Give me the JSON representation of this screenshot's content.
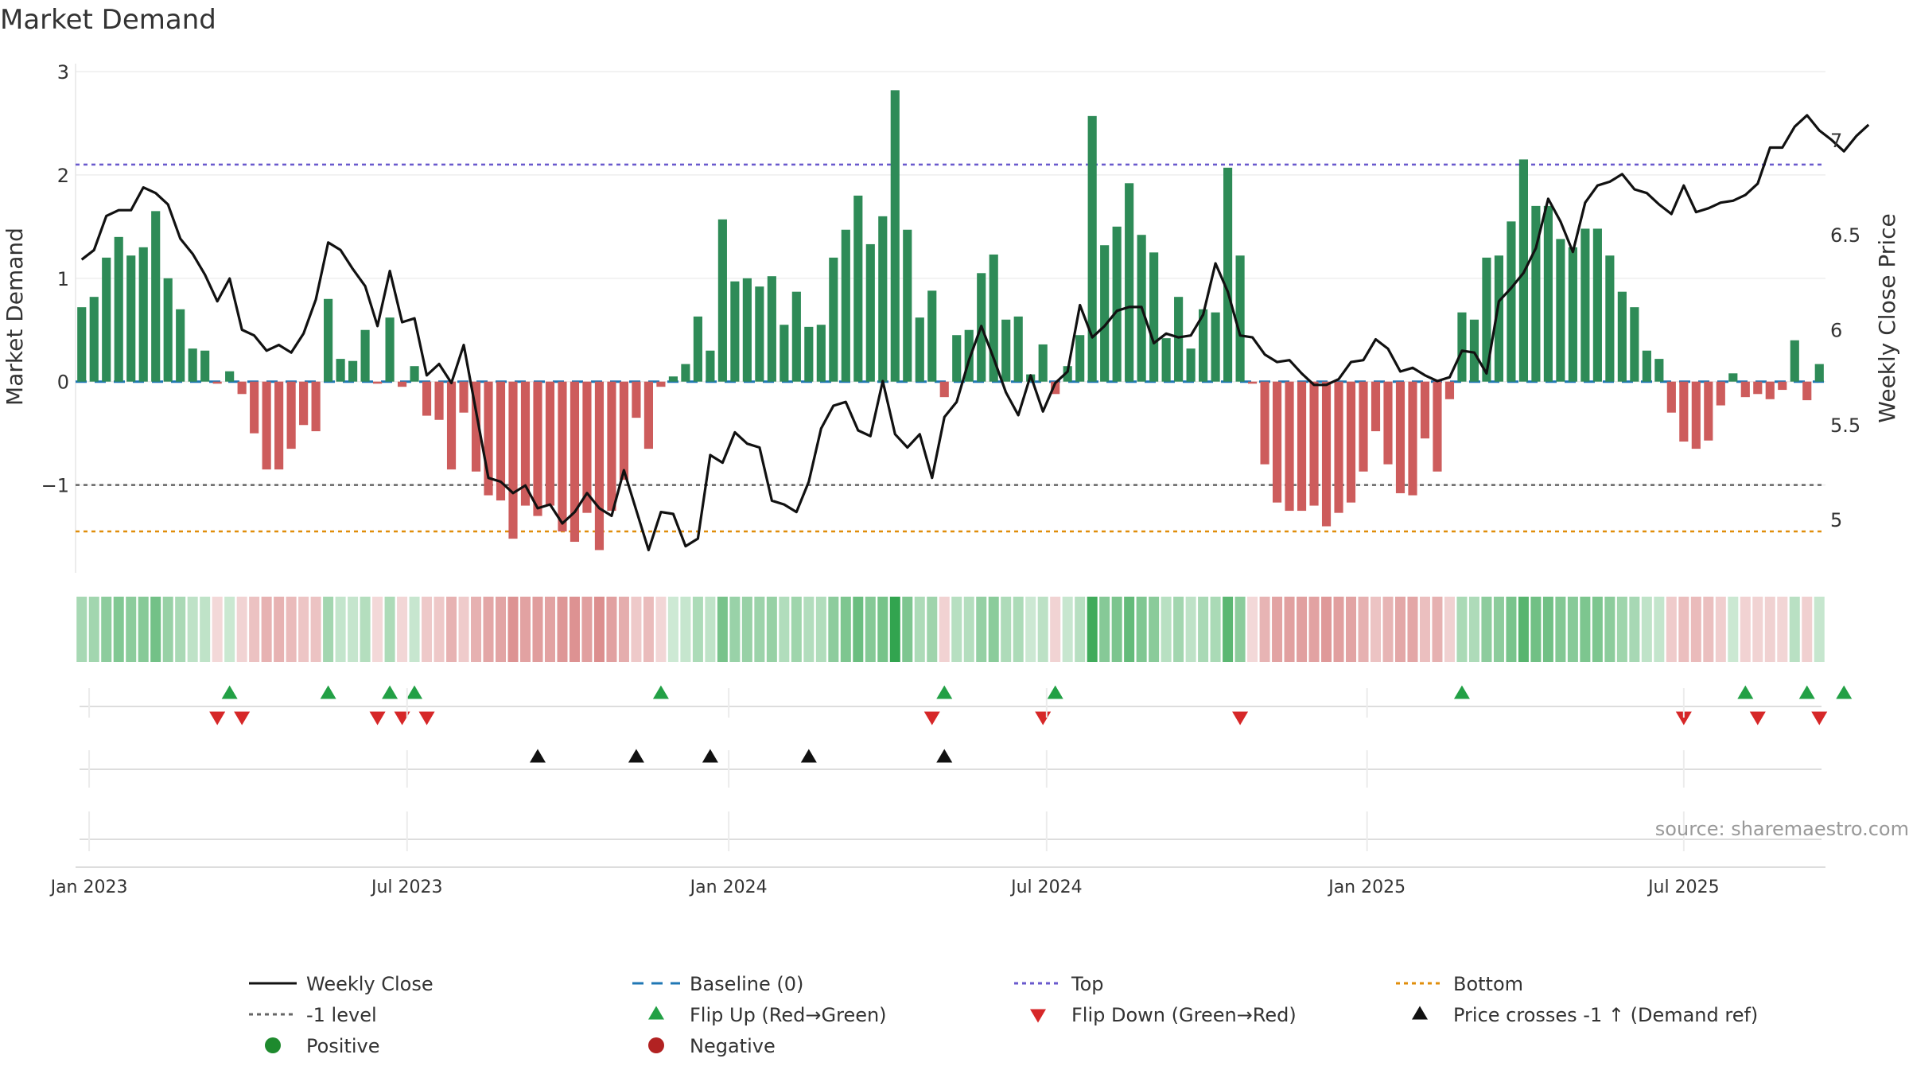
{
  "colors": {
    "positive_bar": "#2e8b57",
    "negative_bar": "#cd5c5c",
    "close_line": "#111111",
    "baseline": "#1f77b4",
    "top": "#6a5acd",
    "level_minus1": "#666666",
    "bottom": "#e08e0b",
    "flip_up": "#22a045",
    "flip_down": "#d62728",
    "price_cross": "#111111",
    "positive_dot": "#1e8a2e",
    "negative_dot": "#b22222"
  },
  "chart_data": {
    "type": "bar+line",
    "title": "Market Demand",
    "ylabel": "Market Demand",
    "y2label": "Weekly Close Price",
    "ylim": [
      -1.85,
      3.0
    ],
    "y2lim": [
      4.72,
      7.36
    ],
    "yticks": [
      "3",
      "2",
      "1",
      "0",
      "−1"
    ],
    "y2ticks": [
      "7",
      "6.5",
      "6",
      "5.5",
      "5"
    ],
    "xticks": [
      "Jan 2023",
      "Jul 2023",
      "Jan 2024",
      "Jul 2024",
      "Jan 2025",
      "Jul 2025"
    ],
    "reference_levels": {
      "top": 2.1,
      "level_minus1": -1.0,
      "bottom": -1.45,
      "baseline": 0
    },
    "demand": [
      0.72,
      0.82,
      1.2,
      1.4,
      1.22,
      1.3,
      1.65,
      1.0,
      0.7,
      0.32,
      0.3,
      -0.02,
      0.1,
      -0.12,
      -0.5,
      -0.85,
      -0.85,
      -0.65,
      -0.42,
      -0.48,
      0.8,
      0.22,
      0.2,
      0.5,
      -0.02,
      0.62,
      -0.05,
      0.15,
      -0.33,
      -0.37,
      -0.85,
      -0.3,
      -0.87,
      -1.1,
      -1.15,
      -1.52,
      -1.2,
      -1.3,
      -1.2,
      -1.45,
      -1.55,
      -1.27,
      -1.63,
      -1.25,
      -0.95,
      -0.35,
      -0.65,
      -0.05,
      0.05,
      0.17,
      0.63,
      0.3,
      1.57,
      0.97,
      1.0,
      0.92,
      1.02,
      0.55,
      0.87,
      0.53,
      0.55,
      1.2,
      1.47,
      1.8,
      1.33,
      1.6,
      2.82,
      1.47,
      0.62,
      0.88,
      -0.15,
      0.45,
      0.5,
      1.05,
      1.23,
      0.6,
      0.63,
      0.07,
      0.36,
      -0.12,
      0.15,
      0.45,
      2.57,
      1.32,
      1.5,
      1.92,
      1.42,
      1.25,
      0.42,
      0.82,
      0.32,
      0.7,
      0.67,
      2.07,
      1.22,
      -0.02,
      -0.8,
      -1.17,
      -1.25,
      -1.25,
      -1.2,
      -1.4,
      -1.27,
      -1.17,
      -0.87,
      -0.48,
      -0.8,
      -1.08,
      -1.1,
      -0.55,
      -0.87,
      -0.17,
      0.67,
      0.6,
      1.2,
      1.22,
      1.55,
      2.15,
      1.7,
      1.7,
      1.38,
      1.3,
      1.48,
      1.48,
      1.22,
      0.87,
      0.72,
      0.3,
      0.22,
      -0.3,
      -0.58,
      -0.65,
      -0.57,
      -0.23,
      0.08,
      -0.15,
      -0.12,
      -0.17,
      -0.08,
      0.4,
      -0.18,
      0.17
    ],
    "weekly_close": [
      6.37,
      6.42,
      6.6,
      6.63,
      6.63,
      6.75,
      6.72,
      6.66,
      6.48,
      6.4,
      6.29,
      6.15,
      6.27,
      6.0,
      5.97,
      5.89,
      5.92,
      5.88,
      5.98,
      6.16,
      6.46,
      6.42,
      6.32,
      6.23,
      6.02,
      6.31,
      6.04,
      6.06,
      5.76,
      5.82,
      5.72,
      5.92,
      5.57,
      5.22,
      5.2,
      5.14,
      5.18,
      5.06,
      5.08,
      4.98,
      5.04,
      5.14,
      5.06,
      5.02,
      5.26,
      5.05,
      4.84,
      5.04,
      5.03,
      4.86,
      4.9,
      5.34,
      5.3,
      5.46,
      5.4,
      5.38,
      5.1,
      5.08,
      5.04,
      5.2,
      5.48,
      5.6,
      5.62,
      5.47,
      5.44,
      5.73,
      5.45,
      5.38,
      5.45,
      5.22,
      5.54,
      5.62,
      5.84,
      6.02,
      5.85,
      5.67,
      5.55,
      5.76,
      5.57,
      5.72,
      5.78,
      6.13,
      5.96,
      6.02,
      6.1,
      6.12,
      6.12,
      5.93,
      5.98,
      5.96,
      5.97,
      6.08,
      6.35,
      6.2,
      5.97,
      5.96,
      5.87,
      5.83,
      5.84,
      5.77,
      5.71,
      5.71,
      5.74,
      5.83,
      5.84,
      5.95,
      5.9,
      5.78,
      5.8,
      5.76,
      5.73,
      5.75,
      5.89,
      5.88,
      5.77,
      6.15,
      6.22,
      6.3,
      6.43,
      6.69,
      6.57,
      6.41,
      6.67,
      6.76,
      6.78,
      6.82,
      6.74,
      6.72,
      6.66,
      6.61,
      6.76,
      6.62,
      6.64,
      6.67,
      6.68,
      6.71,
      6.77,
      6.96,
      6.96,
      7.07,
      7.13,
      7.05,
      7.0,
      6.94,
      7.02,
      7.08
    ],
    "flip_up": [
      12,
      20,
      25,
      27,
      47,
      70,
      79,
      112,
      135,
      140,
      143
    ],
    "flip_down": [
      11,
      13,
      24,
      26,
      28,
      69,
      78,
      94,
      130,
      136,
      141
    ],
    "price_crosses": [
      37,
      45,
      51,
      59,
      70
    ],
    "legend": [
      {
        "label": "Weekly Close",
        "kind": "line-solid",
        "color": "#111111"
      },
      {
        "label": "Baseline (0)",
        "kind": "line-dashed",
        "color": "#1f77b4"
      },
      {
        "label": "Top",
        "kind": "line-dotted",
        "color": "#6a5acd"
      },
      {
        "label": "Bottom",
        "kind": "line-dotted",
        "color": "#e08e0b"
      },
      {
        "label": "-1 level",
        "kind": "line-dotted",
        "color": "#666666"
      },
      {
        "label": "Flip Up (Red→Green)",
        "kind": "tri-up",
        "color": "#22a045"
      },
      {
        "label": "Flip Down (Green→Red)",
        "kind": "tri-down",
        "color": "#d62728"
      },
      {
        "label": "Price crosses -1 ↑ (Demand ref)",
        "kind": "tri-up",
        "color": "#111111"
      },
      {
        "label": "Positive",
        "kind": "dot",
        "color": "#1e8a2e"
      },
      {
        "label": "Negative",
        "kind": "dot",
        "color": "#b22222"
      }
    ],
    "source": "source: sharemaestro.com"
  }
}
